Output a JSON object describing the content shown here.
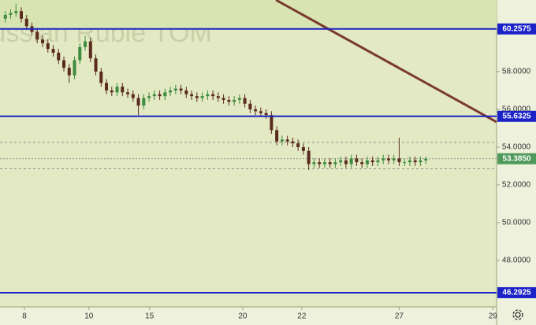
{
  "chart_data": {
    "type": "candlestick",
    "watermark": "Russian Ruble TOM",
    "x": [
      1,
      2,
      3,
      4,
      5,
      6,
      7,
      8,
      9,
      10,
      11,
      12,
      13,
      14,
      15,
      16,
      17,
      18,
      19,
      20,
      21,
      22,
      23,
      24,
      25,
      26,
      27,
      28,
      29,
      30,
      31,
      32,
      33,
      34,
      35,
      36,
      37,
      38,
      39,
      40,
      41,
      42,
      43,
      44,
      45,
      46,
      47,
      48,
      49,
      50,
      51,
      52,
      53,
      54,
      55,
      56,
      57,
      58,
      59,
      60,
      61,
      62,
      63,
      64,
      65,
      66,
      67,
      68,
      69,
      70,
      71,
      72,
      73,
      74,
      75,
      76,
      77,
      78,
      79,
      80
    ],
    "open": [
      60.8,
      61.0,
      61.1,
      61.2,
      60.8,
      60.4,
      60.1,
      59.7,
      59.5,
      59.2,
      59.0,
      58.6,
      58.2,
      57.8,
      58.6,
      59.3,
      59.6,
      58.7,
      58.0,
      57.4,
      57.0,
      56.9,
      57.2,
      56.9,
      56.8,
      56.6,
      56.2,
      56.6,
      56.7,
      56.8,
      56.7,
      56.9,
      57.0,
      57.1,
      57.0,
      56.8,
      56.7,
      56.6,
      56.7,
      56.8,
      56.7,
      56.6,
      56.5,
      56.4,
      56.5,
      56.6,
      56.3,
      56.0,
      55.9,
      55.8,
      55.7,
      54.9,
      54.3,
      54.4,
      54.3,
      54.2,
      54.0,
      53.8,
      53.1,
      53.2,
      53.1,
      53.2,
      53.1,
      53.2,
      53.3,
      53.1,
      53.4,
      53.2,
      53.1,
      53.3,
      53.2,
      53.3,
      53.4,
      53.3,
      53.4,
      53.2,
      53.2,
      53.3,
      53.2,
      53.3
    ],
    "high": [
      61.2,
      61.3,
      61.6,
      61.4,
      61.0,
      60.6,
      60.3,
      59.9,
      59.7,
      59.4,
      59.2,
      58.8,
      58.4,
      58.8,
      59.5,
      59.9,
      59.8,
      58.9,
      58.2,
      57.6,
      57.2,
      57.4,
      57.4,
      57.1,
      57.0,
      56.8,
      56.8,
      56.9,
      57.0,
      57.0,
      57.1,
      57.2,
      57.3,
      57.3,
      57.2,
      57.0,
      56.9,
      56.9,
      57.0,
      57.0,
      56.9,
      56.8,
      56.7,
      56.7,
      56.8,
      56.8,
      56.5,
      56.2,
      56.1,
      56.0,
      55.9,
      55.1,
      54.6,
      54.6,
      54.5,
      54.4,
      54.2,
      54.0,
      53.4,
      53.4,
      53.4,
      53.4,
      53.4,
      53.5,
      53.5,
      53.6,
      53.6,
      53.4,
      53.5,
      53.5,
      53.5,
      53.6,
      53.6,
      53.6,
      54.5,
      53.4,
      53.5,
      53.5,
      53.5,
      53.5
    ],
    "low": [
      60.6,
      60.8,
      60.9,
      60.6,
      60.2,
      59.9,
      59.5,
      59.3,
      59.0,
      58.8,
      58.4,
      58.0,
      57.4,
      57.6,
      58.4,
      59.1,
      58.5,
      57.8,
      57.2,
      56.8,
      56.7,
      56.7,
      56.7,
      56.6,
      56.4,
      55.7,
      56.0,
      56.4,
      56.5,
      56.5,
      56.5,
      56.7,
      56.8,
      56.8,
      56.6,
      56.5,
      56.4,
      56.4,
      56.5,
      56.5,
      56.4,
      56.3,
      56.2,
      56.2,
      56.3,
      56.1,
      55.8,
      55.7,
      55.6,
      55.5,
      54.7,
      54.1,
      54.1,
      54.1,
      54.0,
      53.8,
      53.6,
      52.8,
      52.9,
      52.9,
      52.9,
      52.9,
      52.9,
      53.0,
      52.9,
      52.9,
      53.0,
      52.9,
      52.9,
      53.0,
      53.0,
      53.1,
      53.1,
      53.1,
      53.0,
      53.0,
      53.0,
      53.0,
      53.0,
      53.1
    ],
    "close": [
      61.0,
      61.1,
      61.2,
      60.8,
      60.4,
      60.1,
      59.7,
      59.5,
      59.2,
      59.0,
      58.6,
      58.2,
      57.8,
      58.6,
      59.3,
      59.6,
      58.7,
      58.0,
      57.4,
      57.0,
      56.9,
      57.2,
      56.9,
      56.8,
      56.6,
      56.2,
      56.6,
      56.7,
      56.8,
      56.7,
      56.9,
      57.0,
      57.1,
      57.0,
      56.8,
      56.7,
      56.6,
      56.7,
      56.8,
      56.7,
      56.6,
      56.5,
      56.4,
      56.5,
      56.6,
      56.3,
      56.0,
      55.9,
      55.8,
      55.7,
      54.9,
      54.3,
      54.4,
      54.3,
      54.2,
      54.0,
      53.8,
      53.1,
      53.2,
      53.1,
      53.2,
      53.1,
      53.2,
      53.3,
      53.1,
      53.4,
      53.2,
      53.1,
      53.3,
      53.2,
      53.3,
      53.4,
      53.3,
      53.4,
      53.2,
      53.2,
      53.3,
      53.2,
      53.3,
      53.385
    ],
    "up_color": "#3d8b3d",
    "down_color": "#5a2a1e",
    "xlim": [
      0,
      93.3
    ],
    "ylim": [
      45.54,
      61.79
    ],
    "xticks": [
      {
        "value": 4.6,
        "label": "8"
      },
      {
        "value": 16.7,
        "label": "10"
      },
      {
        "value": 28.1,
        "label": "15"
      },
      {
        "value": 45.6,
        "label": "20"
      },
      {
        "value": 56.7,
        "label": "22"
      },
      {
        "value": 75.0,
        "label": "27"
      },
      {
        "value": 92.6,
        "label": "29"
      }
    ],
    "yticks": [
      {
        "value": 48,
        "label": "48.0000"
      },
      {
        "value": 50,
        "label": "50.0000"
      },
      {
        "value": 52,
        "label": "52.0000"
      },
      {
        "value": 54,
        "label": "54.0000"
      },
      {
        "value": 56,
        "label": "56.0000"
      },
      {
        "value": 58,
        "label": "58.0000"
      }
    ],
    "levels": [
      {
        "value": 60.2575,
        "label": "60.2575"
      },
      {
        "value": 55.6325,
        "label": "55.6325"
      },
      {
        "value": 46.2925,
        "label": "46.2925"
      }
    ],
    "level_color": "#1a22c8",
    "dashed_levels": [
      54.25,
      52.85
    ],
    "last_price": {
      "value": 53.385,
      "label": "53.3850"
    },
    "last_price_color": "#4f9a5a",
    "trendline": {
      "x": [
        51.85,
        93.3
      ],
      "y": [
        61.79,
        55.33
      ],
      "color": "#7a3b2e"
    }
  }
}
